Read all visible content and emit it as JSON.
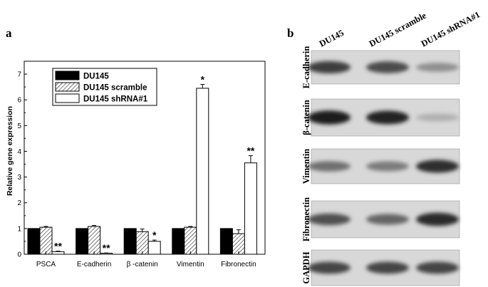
{
  "panel_a": {
    "letter": "a"
  },
  "panel_b": {
    "letter": "b",
    "lanes": [
      "DU145",
      "DU145 scramble",
      "DU145 shRNA#1"
    ],
    "blots": [
      {
        "label": "E-cadherin",
        "intensity": [
          0.78,
          0.72,
          0.4
        ]
      },
      {
        "label": "β-catenin",
        "intensity": [
          0.95,
          0.92,
          0.25
        ]
      },
      {
        "label": "Vimentin",
        "intensity": [
          0.55,
          0.5,
          0.85
        ]
      },
      {
        "label": "Fibronectin",
        "intensity": [
          0.7,
          0.6,
          0.88
        ]
      },
      {
        "label": "GAPDH",
        "intensity": [
          0.75,
          0.75,
          0.75
        ]
      }
    ]
  },
  "colors": {
    "series_fill": [
      "#000000",
      "#ffffff",
      "#ffffff"
    ],
    "series_pattern": [
      "solid",
      "hatch",
      "open"
    ]
  },
  "chart_data": {
    "type": "bar",
    "title": "",
    "xlabel": "",
    "ylabel": "Relative gene expression",
    "ylim": [
      0,
      7.5
    ],
    "yticks": [
      "0",
      "1",
      "2",
      "3",
      "4",
      "5",
      "6",
      "7"
    ],
    "categories": [
      "PSCA",
      "E-cadherin",
      "β -catenin",
      "Vimentin",
      "Fibronectin"
    ],
    "series": [
      {
        "name": "DU145",
        "values": [
          1.0,
          1.0,
          1.0,
          1.0,
          1.0
        ],
        "errors": [
          0,
          0,
          0,
          0,
          0
        ]
      },
      {
        "name": "DU145 scramble",
        "values": [
          1.05,
          1.08,
          0.88,
          1.05,
          0.8
        ],
        "errors": [
          0.03,
          0.04,
          0.1,
          0.03,
          0.15
        ]
      },
      {
        "name": "DU145 shRNA#1",
        "values": [
          0.1,
          0.04,
          0.5,
          6.45,
          3.55
        ],
        "errors": [
          0.02,
          0.01,
          0.05,
          0.15,
          0.28
        ]
      }
    ],
    "annotations": [
      "**",
      "**",
      "*",
      "*",
      "**"
    ],
    "legend": "top-left",
    "grid": false
  }
}
